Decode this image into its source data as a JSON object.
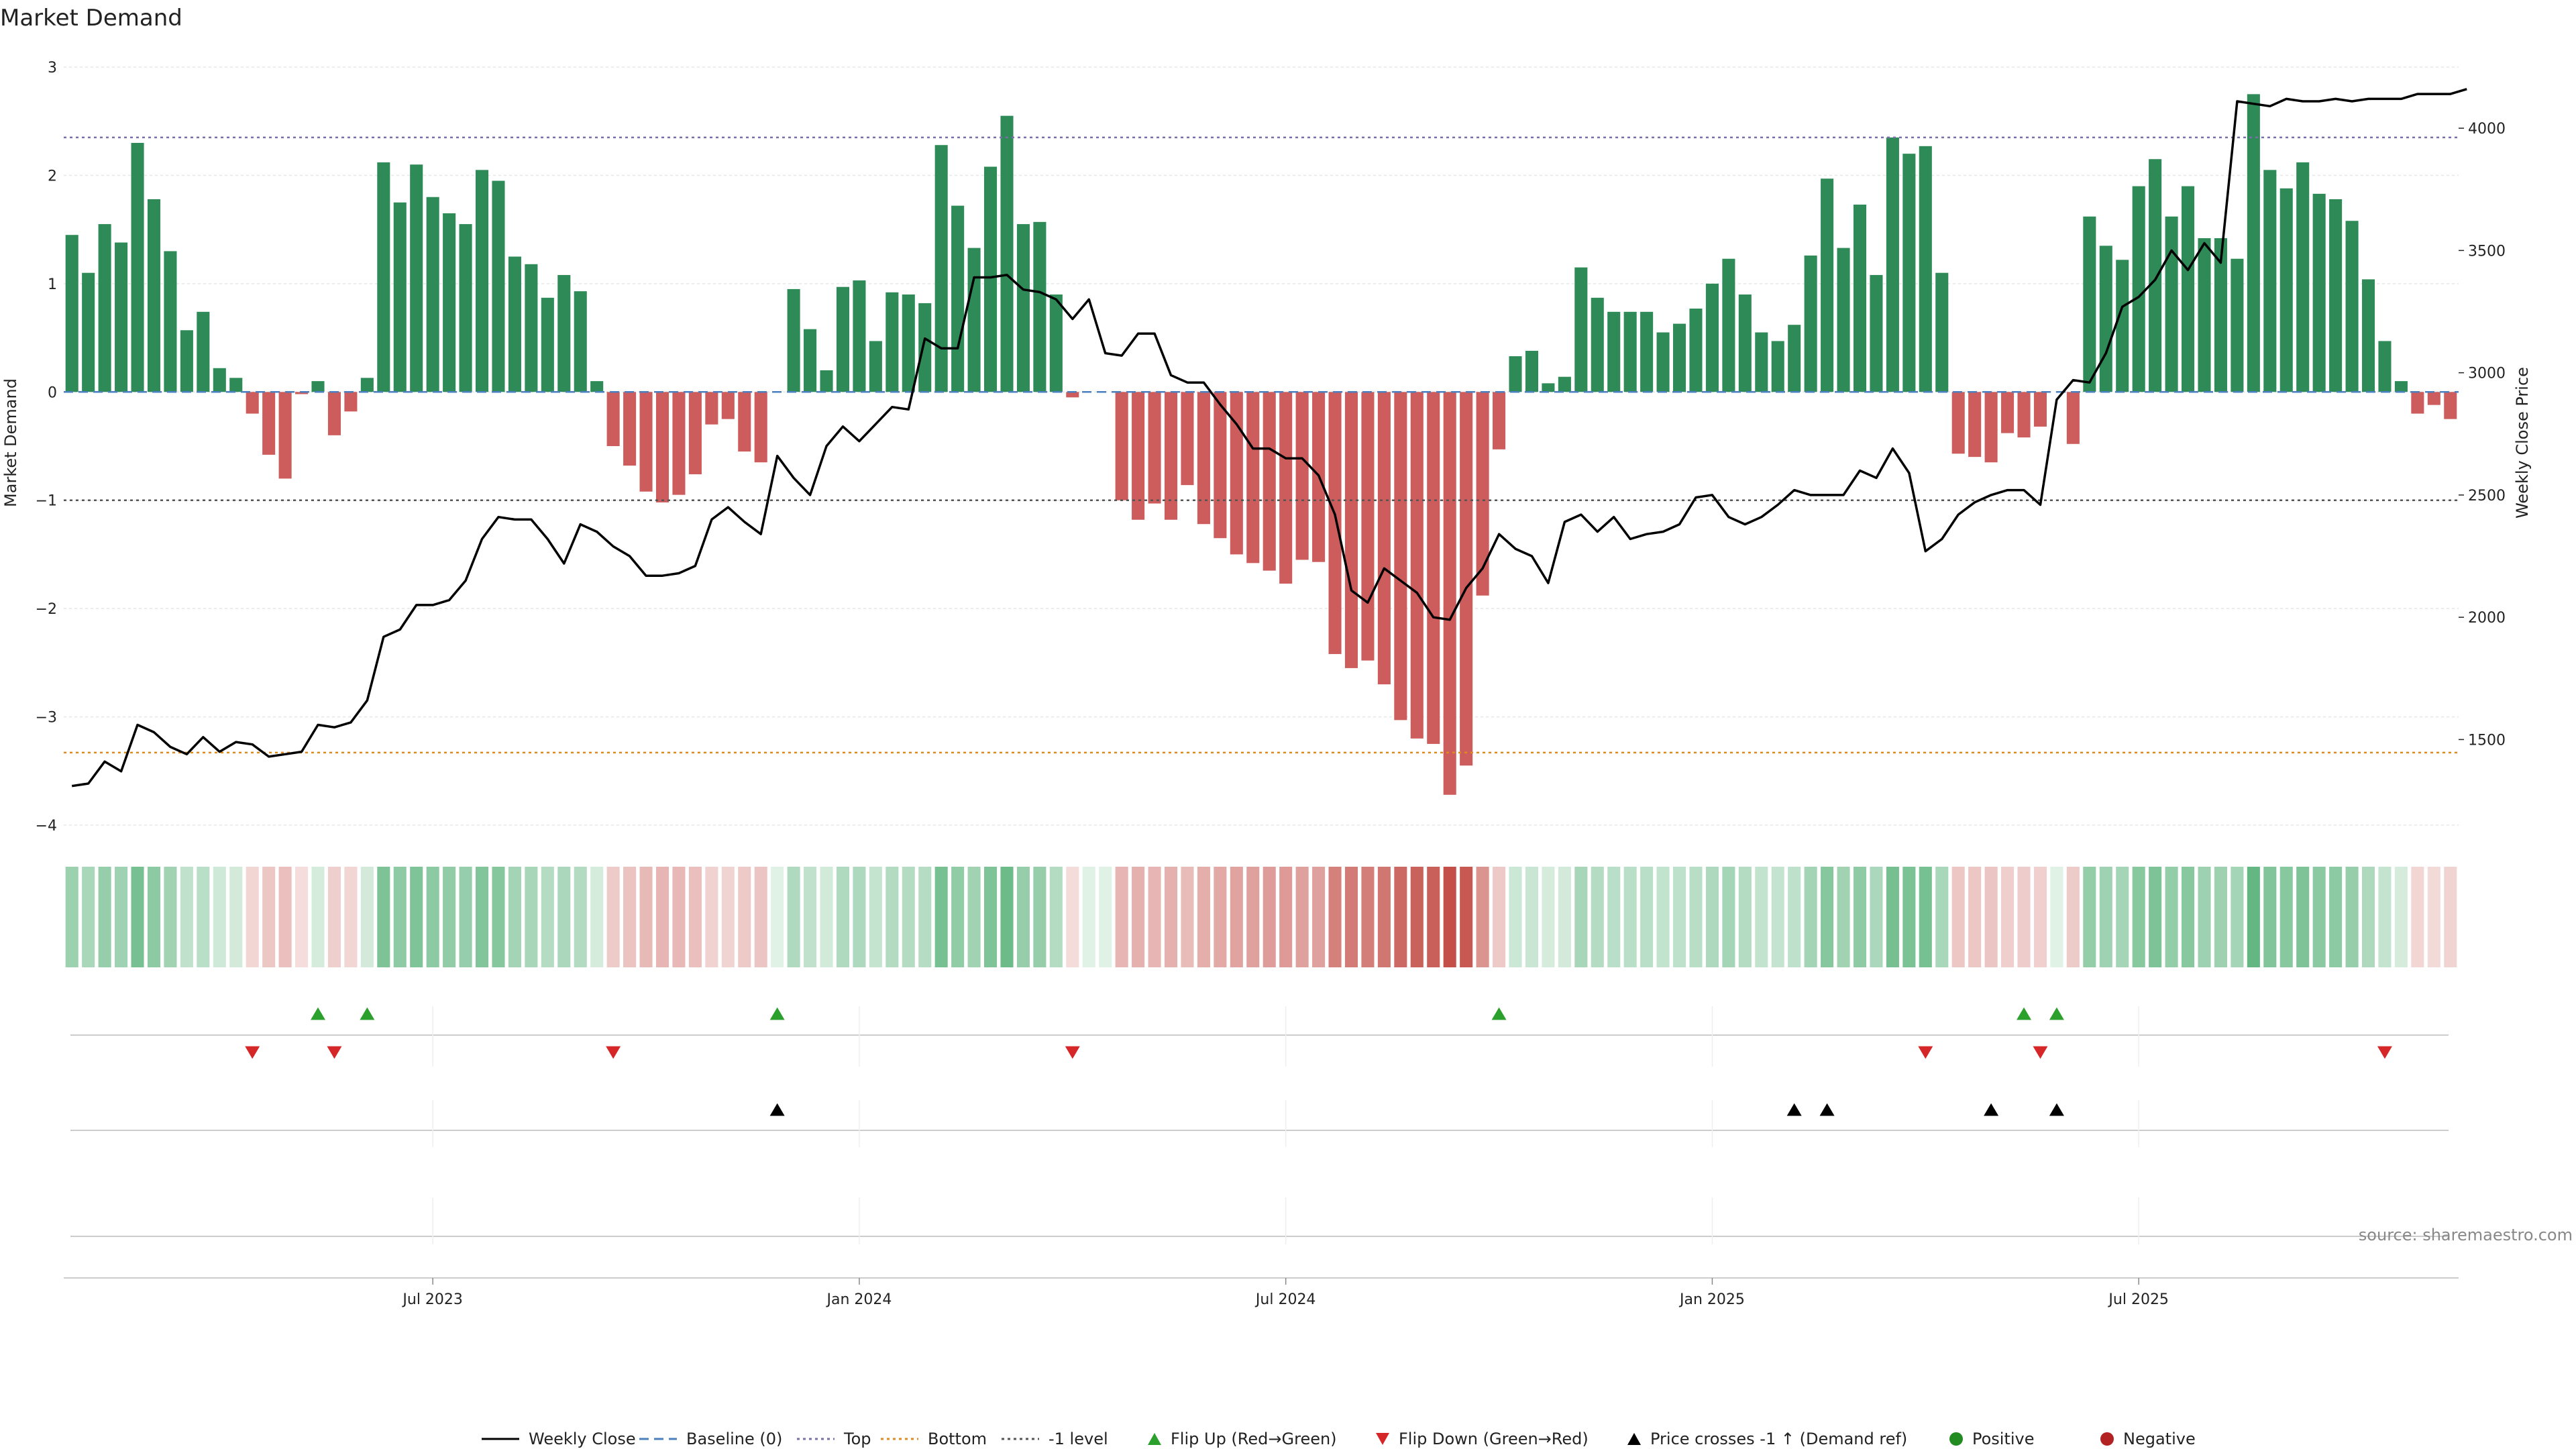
{
  "chart_data": {
    "type": "bar",
    "title": "Market Demand",
    "ylabel": "Market Demand",
    "y2label": "Weekly Close Price",
    "ylim": [
      -4,
      3
    ],
    "y2lim": [
      1150,
      4250
    ],
    "yticks": [
      3,
      2,
      1,
      0,
      -1,
      -2,
      -3,
      -4
    ],
    "y2ticks": [
      1500,
      2000,
      2500,
      3000,
      3500,
      4000
    ],
    "xticks": [
      "Jul 2023",
      "Jan 2024",
      "Jul 2024",
      "Jan 2025",
      "Jul 2025"
    ],
    "xtick_weeks": [
      22,
      48,
      74,
      100,
      126
    ],
    "reference_lines": {
      "baseline": 0,
      "top": 2.35,
      "bottom": -3.33,
      "minus_one": -1
    },
    "demand": [
      1.45,
      1.1,
      1.55,
      1.38,
      2.3,
      1.78,
      1.3,
      0.57,
      0.74,
      0.22,
      0.13,
      -0.2,
      -0.58,
      -0.8,
      -0.02,
      0.1,
      -0.4,
      -0.18,
      0.13,
      2.12,
      1.75,
      2.1,
      1.8,
      1.65,
      1.55,
      2.05,
      1.95,
      1.25,
      1.18,
      0.87,
      1.08,
      0.93,
      0.1,
      -0.5,
      -0.68,
      -0.92,
      -1.02,
      -0.95,
      -0.76,
      -0.3,
      -0.25,
      -0.55,
      -0.65,
      0.0,
      0.95,
      0.58,
      0.2,
      0.97,
      1.03,
      0.47,
      0.92,
      0.9,
      0.82,
      2.28,
      1.72,
      1.33,
      2.08,
      2.55,
      1.55,
      1.57,
      0.9,
      -0.05,
      0.0,
      0.0,
      -1.0,
      -1.18,
      -1.03,
      -1.18,
      -0.86,
      -1.22,
      -1.35,
      -1.5,
      -1.58,
      -1.65,
      -1.77,
      -1.55,
      -1.57,
      -2.42,
      -2.55,
      -2.48,
      -2.7,
      -3.03,
      -3.2,
      -3.25,
      -3.72,
      -3.45,
      -1.88,
      -0.53,
      0.33,
      0.38,
      0.08,
      0.14,
      1.15,
      0.87,
      0.74,
      0.74,
      0.74,
      0.55,
      0.63,
      0.77,
      1.0,
      1.23,
      0.9,
      0.55,
      0.47,
      0.62,
      1.26,
      1.97,
      1.33,
      1.73,
      1.08,
      2.35,
      2.2,
      2.27,
      1.1,
      -0.57,
      -0.6,
      -0.65,
      -0.38,
      -0.42,
      -0.32,
      0.0,
      -0.48,
      1.62,
      1.35,
      1.22,
      1.9,
      2.15,
      1.62,
      1.9,
      1.42,
      1.42,
      1.23,
      2.75,
      2.05,
      1.88,
      2.12,
      1.83,
      1.78,
      1.58,
      1.04,
      0.47,
      0.1,
      -0.2,
      -0.12,
      -0.25
    ],
    "price": [
      1310,
      1320,
      1410,
      1370,
      1560,
      1530,
      1470,
      1440,
      1510,
      1450,
      1490,
      1480,
      1430,
      1440,
      1450,
      1560,
      1550,
      1570,
      1660,
      1920,
      1950,
      2050,
      2050,
      2070,
      2150,
      2320,
      2410,
      2400,
      2400,
      2320,
      2220,
      2380,
      2350,
      2290,
      2250,
      2170,
      2170,
      2180,
      2210,
      2400,
      2450,
      2390,
      2340,
      2660,
      2570,
      2500,
      2700,
      2780,
      2720,
      2790,
      2860,
      2850,
      3140,
      3100,
      3100,
      3390,
      3390,
      3400,
      3340,
      3330,
      3300,
      3220,
      3300,
      3080,
      3070,
      3160,
      3160,
      2990,
      2960,
      2960,
      2870,
      2790,
      2690,
      2690,
      2650,
      2650,
      2580,
      2420,
      2110,
      2060,
      2200,
      2150,
      2100,
      2000,
      1990,
      2120,
      2200,
      2340,
      2280,
      2250,
      2140,
      2390,
      2420,
      2350,
      2410,
      2320,
      2340,
      2350,
      2380,
      2490,
      2500,
      2410,
      2380,
      2410,
      2460,
      2520,
      2500,
      2500,
      2500,
      2600,
      2570,
      2690,
      2590,
      2270,
      2320,
      2420,
      2470,
      2500,
      2520,
      2520,
      2460,
      2890,
      2970,
      2960,
      3080,
      3270,
      3310,
      3380,
      3500,
      3420,
      3530,
      3450,
      4110,
      4100,
      4090,
      4120,
      4110,
      4110,
      4120,
      4110,
      4120,
      4120,
      4120,
      4140,
      4140,
      4140,
      4160
    ],
    "flip_up_weeks": [
      15,
      18,
      43,
      87,
      119,
      121
    ],
    "flip_down_weeks": [
      11,
      16,
      33,
      61,
      113,
      120,
      141
    ],
    "price_cross_weeks": [
      43,
      105,
      107,
      117,
      121
    ],
    "legend": [
      {
        "label": "Weekly Close",
        "kind": "line",
        "color": "#000000"
      },
      {
        "label": "Baseline (0)",
        "kind": "dashed",
        "color": "#4a7fc0"
      },
      {
        "label": "Top",
        "kind": "dotted",
        "color": "#7a6fa8"
      },
      {
        "label": "Bottom",
        "kind": "dotted",
        "color": "#e08a1e"
      },
      {
        "label": "-1 level",
        "kind": "dotted",
        "color": "#555555"
      },
      {
        "label": "Flip Up (Red→Green)",
        "kind": "tri-up",
        "color": "#2ca02c"
      },
      {
        "label": "Flip Down (Green→Red)",
        "kind": "tri-down",
        "color": "#d62728"
      },
      {
        "label": "Price crosses -1 ↑ (Demand ref)",
        "kind": "tri-up",
        "color": "#000000"
      },
      {
        "label": "Positive",
        "kind": "dot",
        "color": "#228b22"
      },
      {
        "label": "Negative",
        "kind": "dot",
        "color": "#b22222"
      }
    ],
    "colors": {
      "positive": "#2e8b57",
      "negative": "#cd5c5c",
      "heat_pos": "#2e9e57",
      "heat_neg": "#c0443d"
    }
  },
  "source": "source: sharemaestro.com"
}
